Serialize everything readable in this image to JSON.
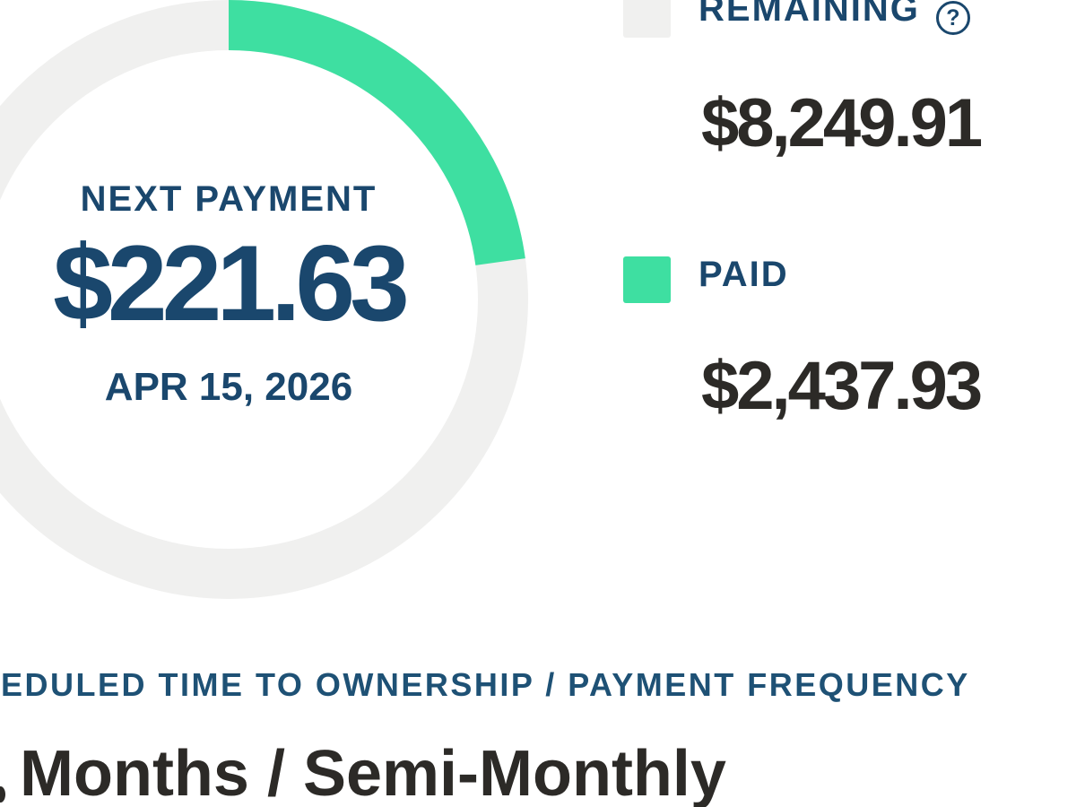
{
  "colors": {
    "paid_green": "#3EDFA1",
    "remaining_gray": "#F0F0EF",
    "navy_text": "#1A476D",
    "heading_navy": "#1E5175",
    "amount_dark": "#2C2A27",
    "background": "#FFFFFF"
  },
  "donut_center": {
    "label": "NEXT PAYMENT",
    "amount": "$221.63",
    "date": "APR 15, 2026"
  },
  "legend": {
    "remaining": {
      "label": "REMAINING",
      "value": "$8,249.91",
      "help_glyph": "?"
    },
    "paid": {
      "label": "PAID",
      "value": "$2,437.93"
    }
  },
  "footer": {
    "heading_visible": "EDULED TIME TO OWNERSHIP / PAYMENT FREQUENCY",
    "value_visible": "Months / Semi-Monthly"
  },
  "chart_data": {
    "type": "pie",
    "donut": true,
    "slices": [
      {
        "label": "PAID",
        "value": 2437.93,
        "color": "#3EDFA1"
      },
      {
        "label": "REMAINING",
        "value": 8249.91,
        "color": "#F0F0EF"
      }
    ],
    "total": 10687.84,
    "paid_fraction_pct": 22.8,
    "start_angle_deg": 0,
    "direction": "clockwise",
    "ring_thickness_px": 56,
    "legend_position": "right",
    "center_text": [
      "NEXT PAYMENT",
      "$221.63",
      "APR 15, 2026"
    ]
  }
}
